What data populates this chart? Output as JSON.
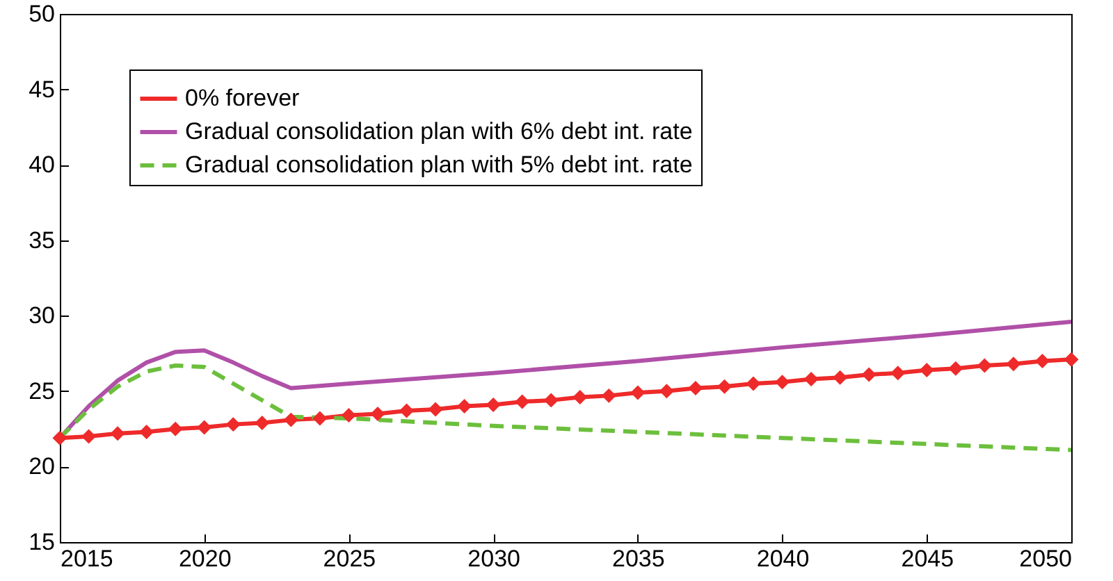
{
  "chart_data": {
    "type": "line",
    "x": [
      2015,
      2016,
      2017,
      2018,
      2019,
      2020,
      2021,
      2022,
      2023,
      2024,
      2025,
      2026,
      2027,
      2028,
      2029,
      2030,
      2031,
      2032,
      2033,
      2034,
      2035,
      2036,
      2037,
      2038,
      2039,
      2040,
      2041,
      2042,
      2043,
      2044,
      2045,
      2046,
      2047,
      2048,
      2049,
      2050
    ],
    "series": [
      {
        "name": "0% forever",
        "color": "#ee2a2a",
        "marker": "diamond",
        "values": [
          21.9,
          22.0,
          22.2,
          22.3,
          22.5,
          22.6,
          22.8,
          22.9,
          23.1,
          23.2,
          23.4,
          23.5,
          23.7,
          23.8,
          24.0,
          24.1,
          24.3,
          24.4,
          24.6,
          24.7,
          24.9,
          25.0,
          25.2,
          25.3,
          25.5,
          25.6,
          25.8,
          25.9,
          26.1,
          26.2,
          26.4,
          26.5,
          26.7,
          26.8,
          27.0,
          27.1
        ]
      },
      {
        "name": "Gradual consolidation plan with 6% debt int. rate",
        "color": "#b050a8",
        "x": [
          2015,
          2016,
          2017,
          2018,
          2019,
          2020,
          2021,
          2022,
          2023,
          2025,
          2030,
          2035,
          2040,
          2045,
          2050
        ],
        "values": [
          21.9,
          24.0,
          25.7,
          26.9,
          27.6,
          27.7,
          26.9,
          26.0,
          25.2,
          25.5,
          26.2,
          27.0,
          27.9,
          28.7,
          29.6
        ]
      },
      {
        "name": "Gradual consolidation plan with 5% debt int. rate",
        "color": "#6cbf3c",
        "line_style": "dashed",
        "x": [
          2015,
          2016,
          2017,
          2018,
          2019,
          2020,
          2021,
          2022,
          2023,
          2025,
          2030,
          2035,
          2040,
          2045,
          2050
        ],
        "values": [
          21.9,
          23.8,
          25.3,
          26.3,
          26.7,
          26.6,
          25.5,
          24.4,
          23.3,
          23.2,
          22.7,
          22.3,
          21.9,
          21.5,
          21.1
        ]
      }
    ],
    "xlim": [
      2015,
      2050
    ],
    "xticks": [
      2015,
      2020,
      2025,
      2030,
      2035,
      2040,
      2045,
      2050
    ],
    "ylim": [
      15,
      50
    ],
    "yticks": [
      15,
      20,
      25,
      30,
      35,
      40,
      45,
      50
    ],
    "grid": false,
    "legend": "top left"
  }
}
